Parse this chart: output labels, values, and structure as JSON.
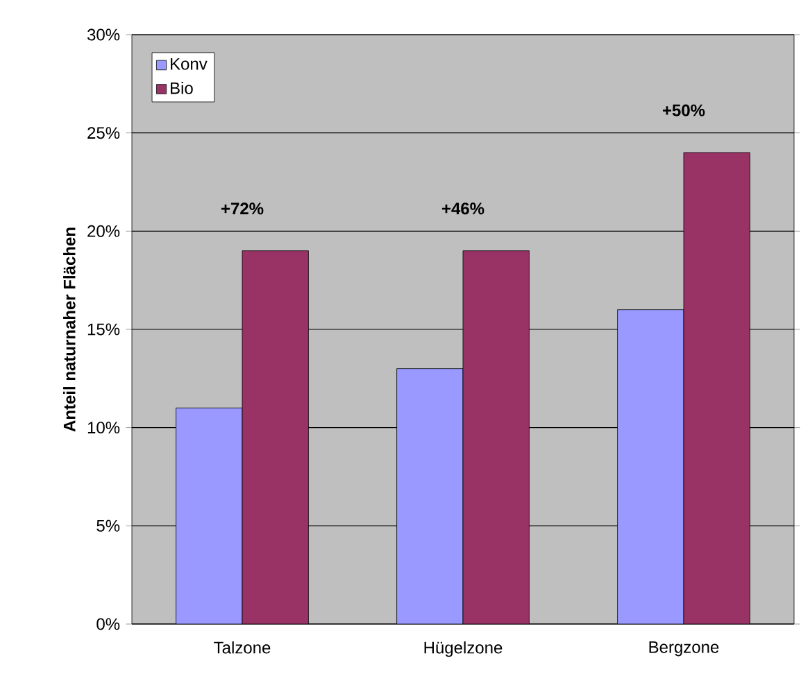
{
  "chart_data": {
    "type": "bar",
    "ylabel": "Anteil naturnaher Flächen",
    "categories": [
      "Talzone",
      "Hügelzone",
      "Bergzone"
    ],
    "series": [
      {
        "name": "Konv",
        "color": "#9999ff",
        "values": [
          11,
          13,
          16
        ]
      },
      {
        "name": "Bio",
        "color": "#993366",
        "values": [
          19,
          19,
          24
        ]
      }
    ],
    "ylim": [
      0,
      30
    ],
    "yticks": [
      {
        "value": 0,
        "label": "0%"
      },
      {
        "value": 5,
        "label": "5%"
      },
      {
        "value": 10,
        "label": "10%"
      },
      {
        "value": 15,
        "label": "15%"
      },
      {
        "value": 20,
        "label": "20%"
      },
      {
        "value": 25,
        "label": "25%"
      },
      {
        "value": 30,
        "label": "30%"
      }
    ],
    "grid": "y",
    "legend": "top left",
    "annotations": [
      "+72%",
      "+46%",
      "+50%"
    ]
  }
}
